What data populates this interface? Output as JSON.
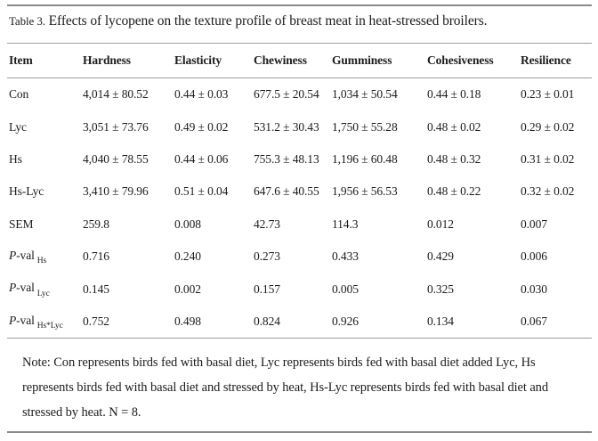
{
  "page": {
    "background": "#ffffff",
    "text_color": "#1c1c1c",
    "rule_color_heavy": "#8a8a8a",
    "rule_color_light": "#9b9b9b"
  },
  "caption": {
    "label": "Table 3.",
    "text": "Effects of lycopene on the texture profile of breast meat in heat-stressed broilers."
  },
  "table": {
    "columns": [
      "Item",
      "Hardness",
      "Elasticity",
      "Chewiness",
      "Gumminess",
      "Cohesiveness",
      "Resilience"
    ],
    "rows": [
      {
        "label": "Con",
        "cells": [
          "4,014 ± 80.52",
          "0.44 ± 0.03",
          "677.5 ± 20.54",
          "1,034 ± 50.54",
          "0.44 ± 0.18",
          "0.23 ± 0.01"
        ]
      },
      {
        "label": "Lyc",
        "cells": [
          "3,051 ± 73.76",
          "0.49 ± 0.02",
          "531.2 ± 30.43",
          "1,750 ± 55.28",
          "0.48 ± 0.02",
          "0.29 ± 0.02"
        ]
      },
      {
        "label": "Hs",
        "cells": [
          "4,040 ± 78.55",
          "0.44 ± 0.06",
          "755.3 ± 48.13",
          "1,196 ± 60.48",
          "0.48 ± 0.32",
          "0.31 ± 0.02"
        ]
      },
      {
        "label": "Hs-Lyc",
        "cells": [
          "3,410 ± 79.96",
          "0.51 ± 0.04",
          "647.6 ± 40.55",
          "1,956 ± 56.53",
          "0.48 ± 0.22",
          "0.32 ± 0.02"
        ]
      },
      {
        "label": "SEM",
        "cells": [
          "259.8",
          "0.008",
          "42.73",
          "114.3",
          "0.012",
          "0.007"
        ]
      },
      {
        "label_prefix": "P",
        "label_mid": "-val",
        "label_sub": "Hs",
        "cells": [
          "0.716",
          "0.240",
          "0.273",
          "0.433",
          "0.429",
          "0.006"
        ]
      },
      {
        "label_prefix": "P",
        "label_mid": "-val",
        "label_sub": "Lyc",
        "cells": [
          "0.145",
          "0.002",
          "0.157",
          "0.005",
          "0.325",
          "0.030"
        ]
      },
      {
        "label_prefix": "P",
        "label_mid": "-val",
        "label_sub": "Hs*Lyc",
        "cells": [
          "0.752",
          "0.498",
          "0.824",
          "0.926",
          "0.134",
          "0.067"
        ]
      }
    ]
  },
  "note": {
    "text": "Note: Con represents birds fed with basal diet, Lyc represents birds fed with basal diet added Lyc, Hs represents birds fed with basal diet and stressed by heat, Hs-Lyc represents birds fed with basal diet and stressed by heat. N = 8."
  }
}
